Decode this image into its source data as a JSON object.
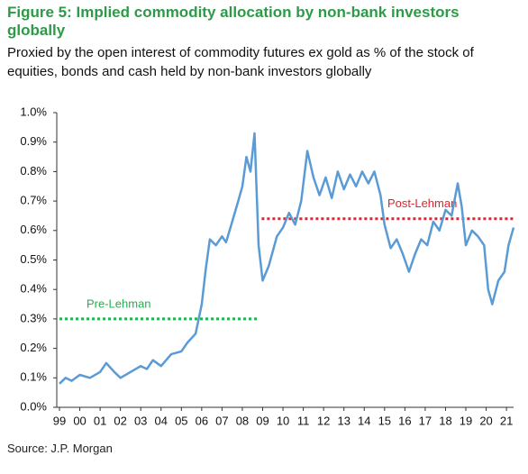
{
  "chart_data": {
    "type": "line",
    "title": "Figure 5: Implied commodity allocation by non-bank investors globally",
    "subtitle": "Proxied by the open interest of commodity futures ex gold as % of the stock of equities, bonds and cash held by non-bank investors globally",
    "source": "Source: J.P. Morgan",
    "x": [
      1999.0,
      1999.3,
      1999.6,
      2000.0,
      2000.5,
      2001.0,
      2001.3,
      2001.7,
      2002.0,
      2002.5,
      2003.0,
      2003.3,
      2003.6,
      2004.0,
      2004.5,
      2005.0,
      2005.3,
      2005.7,
      2006.0,
      2006.2,
      2006.4,
      2006.7,
      2007.0,
      2007.2,
      2007.5,
      2007.8,
      2008.0,
      2008.2,
      2008.4,
      2008.6,
      2008.8,
      2009.0,
      2009.3,
      2009.7,
      2010.0,
      2010.3,
      2010.6,
      2010.9,
      2011.2,
      2011.5,
      2011.8,
      2012.1,
      2012.4,
      2012.7,
      2013.0,
      2013.3,
      2013.6,
      2013.9,
      2014.2,
      2014.5,
      2014.8,
      2015.0,
      2015.3,
      2015.6,
      2015.9,
      2016.2,
      2016.5,
      2016.8,
      2017.1,
      2017.4,
      2017.7,
      2018.0,
      2018.3,
      2018.6,
      2018.8,
      2019.0,
      2019.3,
      2019.6,
      2019.9,
      2020.1,
      2020.3,
      2020.6,
      2020.9,
      2021.1,
      2021.35
    ],
    "values": [
      0.08,
      0.1,
      0.09,
      0.11,
      0.1,
      0.12,
      0.15,
      0.12,
      0.1,
      0.12,
      0.14,
      0.13,
      0.16,
      0.14,
      0.18,
      0.19,
      0.22,
      0.25,
      0.35,
      0.47,
      0.57,
      0.55,
      0.58,
      0.56,
      0.63,
      0.7,
      0.75,
      0.85,
      0.8,
      0.93,
      0.55,
      0.43,
      0.48,
      0.58,
      0.61,
      0.66,
      0.62,
      0.7,
      0.87,
      0.78,
      0.72,
      0.78,
      0.71,
      0.8,
      0.74,
      0.79,
      0.75,
      0.8,
      0.76,
      0.8,
      0.72,
      0.62,
      0.54,
      0.57,
      0.52,
      0.46,
      0.52,
      0.57,
      0.55,
      0.63,
      0.6,
      0.67,
      0.65,
      0.76,
      0.68,
      0.55,
      0.6,
      0.58,
      0.55,
      0.4,
      0.35,
      0.43,
      0.46,
      0.55,
      0.61
    ],
    "color": "#5b9bd5",
    "reference_lines": [
      {
        "label": "Pre-Lehman",
        "value": 0.3,
        "x": [
          1999.0,
          2008.8
        ],
        "color": "#22b24c"
      },
      {
        "label": "Post-Lehman",
        "value": 0.64,
        "x": [
          2008.95,
          2021.35
        ],
        "color": "#e8202a"
      }
    ],
    "xlim": [
      1999.0,
      2021.35
    ],
    "xticks": [
      {
        "value": 1999,
        "label": "99"
      },
      {
        "value": 2000,
        "label": "00"
      },
      {
        "value": 2001,
        "label": "01"
      },
      {
        "value": 2002,
        "label": "02"
      },
      {
        "value": 2003,
        "label": "03"
      },
      {
        "value": 2004,
        "label": "04"
      },
      {
        "value": 2005,
        "label": "05"
      },
      {
        "value": 2006,
        "label": "06"
      },
      {
        "value": 2007,
        "label": "07"
      },
      {
        "value": 2008,
        "label": "08"
      },
      {
        "value": 2009,
        "label": "09"
      },
      {
        "value": 2010,
        "label": "10"
      },
      {
        "value": 2011,
        "label": "11"
      },
      {
        "value": 2012,
        "label": "12"
      },
      {
        "value": 2013,
        "label": "13"
      },
      {
        "value": 2014,
        "label": "14"
      },
      {
        "value": 2015,
        "label": "15"
      },
      {
        "value": 2016,
        "label": "16"
      },
      {
        "value": 2017,
        "label": "17"
      },
      {
        "value": 2018,
        "label": "18"
      },
      {
        "value": 2019,
        "label": "19"
      },
      {
        "value": 2020,
        "label": "20"
      },
      {
        "value": 2021,
        "label": "21"
      }
    ],
    "ylim": [
      0,
      1.0
    ],
    "yticks": [
      {
        "value": 0,
        "label": "0.0%"
      },
      {
        "value": 0.1,
        "label": "0.1%"
      },
      {
        "value": 0.2,
        "label": "0.2%"
      },
      {
        "value": 0.3,
        "label": "0.3%"
      },
      {
        "value": 0.4,
        "label": "0.4%"
      },
      {
        "value": 0.5,
        "label": "0.5%"
      },
      {
        "value": 0.6,
        "label": "0.6%"
      },
      {
        "value": 0.7,
        "label": "0.7%"
      },
      {
        "value": 0.8,
        "label": "0.8%"
      },
      {
        "value": 0.9,
        "label": "0.9%"
      },
      {
        "value": 1.0,
        "label": "1.0%"
      }
    ]
  }
}
